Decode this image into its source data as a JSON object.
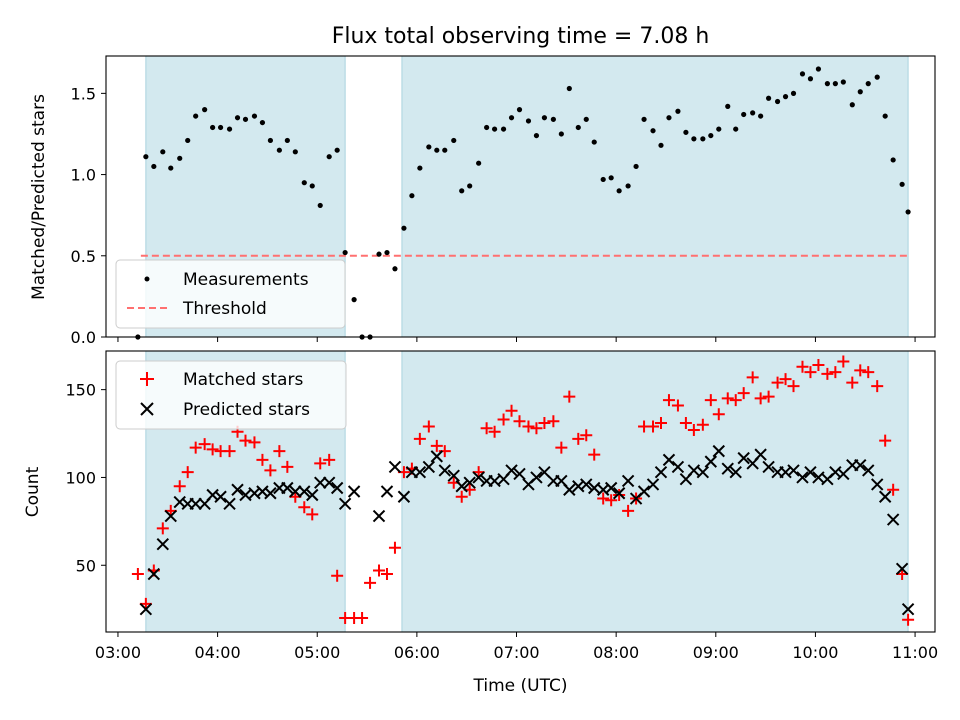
{
  "chart_data": {
    "title": "Flux total observing time = 7.08 h",
    "xlabel": "Time (UTC)",
    "x_ticks": [
      "03:00",
      "04:00",
      "05:00",
      "06:00",
      "07:00",
      "08:00",
      "09:00",
      "10:00",
      "11:00"
    ],
    "x_range_hours": [
      2.88,
      11.2
    ],
    "observing_windows_hours": [
      [
        3.28,
        5.28
      ],
      [
        5.85,
        10.93
      ]
    ],
    "window_color": "#d3e9ef",
    "top": {
      "type": "scatter",
      "ylabel": "Matched/Predicted stars",
      "ylim": [
        0.0,
        1.73
      ],
      "y_ticks": [
        "0.0",
        "0.5",
        "1.0",
        "1.5"
      ],
      "threshold": 0.5,
      "threshold_range_hours": [
        3.23,
        10.93
      ],
      "legend": [
        "Measurements",
        "Threshold"
      ],
      "legend_position": "lower-left",
      "series": [
        {
          "name": "Measurements",
          "color": "#000000",
          "x": [
            3.2,
            3.28,
            3.36,
            3.45,
            3.53,
            3.62,
            3.7,
            3.78,
            3.87,
            3.95,
            4.03,
            4.12,
            4.2,
            4.28,
            4.37,
            4.45,
            4.53,
            4.62,
            4.7,
            4.78,
            4.87,
            4.95,
            5.03,
            5.12,
            5.2,
            5.28,
            5.37,
            5.45,
            5.53,
            5.62,
            5.7,
            5.78,
            5.87,
            5.95,
            6.03,
            6.12,
            6.2,
            6.28,
            6.37,
            6.45,
            6.53,
            6.62,
            6.7,
            6.78,
            6.87,
            6.95,
            7.03,
            7.12,
            7.2,
            7.28,
            7.37,
            7.45,
            7.53,
            7.62,
            7.7,
            7.78,
            7.87,
            7.95,
            8.03,
            8.12,
            8.2,
            8.28,
            8.37,
            8.45,
            8.53,
            8.62,
            8.7,
            8.78,
            8.87,
            8.95,
            9.03,
            9.12,
            9.2,
            9.28,
            9.37,
            9.45,
            9.53,
            9.62,
            9.7,
            9.78,
            9.87,
            9.95,
            10.03,
            10.12,
            10.2,
            10.28,
            10.37,
            10.45,
            10.53,
            10.62,
            10.7,
            10.78,
            10.87,
            10.93
          ],
          "y": [
            0.0,
            1.11,
            1.05,
            1.14,
            1.04,
            1.1,
            1.21,
            1.36,
            1.4,
            1.29,
            1.29,
            1.28,
            1.35,
            1.34,
            1.36,
            1.32,
            1.21,
            1.15,
            1.21,
            1.14,
            0.95,
            0.93,
            0.81,
            1.11,
            1.15,
            0.52,
            0.23,
            0.0,
            0.0,
            0.51,
            0.52,
            0.42,
            0.67,
            0.87,
            1.04,
            1.17,
            1.15,
            1.15,
            1.21,
            0.9,
            0.93,
            1.07,
            1.29,
            1.28,
            1.28,
            1.35,
            1.4,
            1.33,
            1.24,
            1.35,
            1.34,
            1.25,
            1.53,
            1.29,
            1.34,
            1.2,
            0.97,
            0.98,
            0.9,
            0.93,
            1.05,
            1.34,
            1.27,
            1.18,
            1.35,
            1.39,
            1.26,
            1.22,
            1.22,
            1.24,
            1.28,
            1.42,
            1.28,
            1.37,
            1.38,
            1.36,
            1.47,
            1.45,
            1.48,
            1.5,
            1.62,
            1.59,
            1.65,
            1.56,
            1.56,
            1.57,
            1.43,
            1.51,
            1.56,
            1.6,
            1.36,
            1.09,
            0.94,
            0.77
          ]
        }
      ]
    },
    "bottom": {
      "type": "scatter",
      "ylabel": "Count",
      "ylim": [
        12,
        172
      ],
      "y_ticks": [
        "50",
        "100",
        "150"
      ],
      "legend": [
        "Matched stars",
        "Predicted stars"
      ],
      "legend_position": "upper-left",
      "series": [
        {
          "name": "Matched stars",
          "color": "#ff0000",
          "marker": "plus",
          "x": [
            3.2,
            3.28,
            3.36,
            3.45,
            3.53,
            3.62,
            3.7,
            3.78,
            3.87,
            3.95,
            4.03,
            4.12,
            4.2,
            4.28,
            4.37,
            4.45,
            4.53,
            4.62,
            4.7,
            4.78,
            4.87,
            4.95,
            5.03,
            5.12,
            5.2,
            5.28,
            5.37,
            5.45,
            5.53,
            5.62,
            5.7,
            5.78,
            5.87,
            5.95,
            6.03,
            6.12,
            6.2,
            6.28,
            6.37,
            6.45,
            6.53,
            6.62,
            6.7,
            6.78,
            6.87,
            6.95,
            7.03,
            7.12,
            7.2,
            7.28,
            7.37,
            7.45,
            7.53,
            7.62,
            7.7,
            7.78,
            7.87,
            7.95,
            8.03,
            8.12,
            8.2,
            8.28,
            8.37,
            8.45,
            8.53,
            8.62,
            8.7,
            8.78,
            8.87,
            8.95,
            9.03,
            9.12,
            9.2,
            9.28,
            9.37,
            9.45,
            9.53,
            9.62,
            9.7,
            9.78,
            9.87,
            9.95,
            10.03,
            10.12,
            10.2,
            10.28,
            10.37,
            10.45,
            10.53,
            10.62,
            10.7,
            10.78,
            10.87,
            10.93
          ],
          "y": [
            45,
            28,
            47,
            71,
            81,
            95,
            103,
            117,
            119,
            116,
            115,
            115,
            126,
            121,
            120,
            110,
            104,
            115,
            106,
            89,
            83,
            79,
            108,
            110,
            44,
            20,
            20,
            20,
            40,
            47,
            45,
            60,
            103,
            105,
            122,
            129,
            118,
            115,
            97,
            89,
            93,
            103,
            128,
            126,
            133,
            138,
            132,
            129,
            128,
            131,
            132,
            117,
            146,
            122,
            124,
            113,
            88,
            87,
            90,
            81,
            88,
            129,
            129,
            131,
            144,
            141,
            131,
            127,
            130,
            144,
            136,
            145,
            144,
            148,
            157,
            145,
            146,
            154,
            156,
            152,
            163,
            160,
            164,
            159,
            160,
            166,
            154,
            161,
            160,
            152,
            121,
            93,
            45,
            19
          ]
        },
        {
          "name": "Predicted stars",
          "color": "#000000",
          "marker": "x",
          "x": [
            3.28,
            3.36,
            3.45,
            3.53,
            3.62,
            3.7,
            3.78,
            3.87,
            3.95,
            4.03,
            4.12,
            4.2,
            4.28,
            4.37,
            4.45,
            4.53,
            4.62,
            4.7,
            4.78,
            4.87,
            4.95,
            5.03,
            5.12,
            5.2,
            5.28,
            5.37,
            5.62,
            5.7,
            5.78,
            5.87,
            5.95,
            6.03,
            6.12,
            6.2,
            6.28,
            6.37,
            6.45,
            6.53,
            6.62,
            6.7,
            6.78,
            6.87,
            6.95,
            7.03,
            7.12,
            7.2,
            7.28,
            7.37,
            7.45,
            7.53,
            7.62,
            7.7,
            7.78,
            7.87,
            7.95,
            8.03,
            8.12,
            8.2,
            8.28,
            8.37,
            8.45,
            8.53,
            8.62,
            8.7,
            8.78,
            8.87,
            8.95,
            9.03,
            9.12,
            9.2,
            9.28,
            9.37,
            9.45,
            9.53,
            9.62,
            9.7,
            9.78,
            9.87,
            9.95,
            10.03,
            10.12,
            10.2,
            10.28,
            10.37,
            10.45,
            10.53,
            10.62,
            10.7,
            10.78,
            10.87,
            10.93
          ],
          "y": [
            25,
            45,
            62,
            78,
            86,
            85,
            85,
            85,
            90,
            89,
            85,
            93,
            90,
            91,
            92,
            91,
            94,
            94,
            92,
            92,
            90,
            97,
            97,
            94,
            85,
            92,
            78,
            92,
            106,
            89,
            103,
            103,
            106,
            112,
            104,
            101,
            95,
            97,
            100,
            98,
            98,
            99,
            104,
            102,
            96,
            100,
            103,
            98,
            98,
            93,
            95,
            96,
            94,
            93,
            94,
            91,
            98,
            88,
            92,
            96,
            103,
            110,
            106,
            99,
            104,
            103,
            109,
            115,
            105,
            103,
            111,
            108,
            113,
            106,
            103,
            103,
            104,
            100,
            103,
            100,
            99,
            103,
            102,
            107,
            107,
            104,
            96,
            89,
            76,
            48,
            25
          ]
        }
      ]
    }
  }
}
